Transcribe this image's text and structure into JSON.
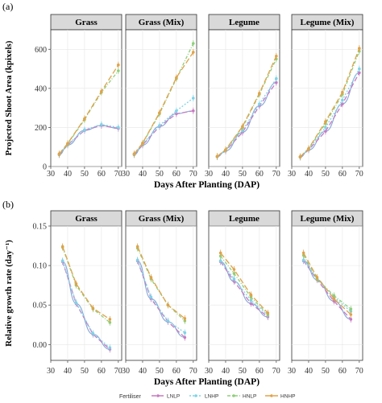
{
  "figure": {
    "panel_a_label": "(a)",
    "panel_b_label": "(b)"
  },
  "chart_data": [
    {
      "type": "line",
      "panel": "(a)",
      "facets": [
        "Grass",
        "Grass (Mix)",
        "Legume",
        "Legume (Mix)"
      ],
      "xlabel": "Days After Planting (DAP)",
      "ylabel": "Projected Shoot Area  (kpixels)",
      "xlim": [
        30,
        72
      ],
      "ylim": [
        0,
        700
      ],
      "xticks": [
        30,
        40,
        50,
        60,
        70
      ],
      "yticks": [
        0,
        200,
        400,
        600
      ],
      "grid": true,
      "x": [
        35,
        40,
        50,
        60,
        70
      ],
      "series_by_facet": {
        "Grass": [
          {
            "name": "LNLP",
            "values": [
              60,
              110,
              185,
              210,
              195
            ]
          },
          {
            "name": "LNHP",
            "values": [
              62,
              112,
              188,
              215,
              200
            ]
          },
          {
            "name": "HNLP",
            "values": [
              63,
              115,
              240,
              380,
              490
            ]
          },
          {
            "name": "HNHP",
            "values": [
              65,
              118,
              245,
              385,
              520
            ]
          }
        ],
        "Grass (Mix)": [
          {
            "name": "LNLP",
            "values": [
              60,
              110,
              205,
              270,
              285
            ]
          },
          {
            "name": "LNHP",
            "values": [
              62,
              115,
              210,
              285,
              350
            ]
          },
          {
            "name": "HNLP",
            "values": [
              63,
              118,
              270,
              450,
              630
            ]
          },
          {
            "name": "HNHP",
            "values": [
              65,
              120,
              275,
              455,
              585
            ]
          }
        ],
        "Legume": [
          {
            "name": "LNLP",
            "values": [
              50,
              80,
              175,
              310,
              430
            ]
          },
          {
            "name": "LNHP",
            "values": [
              50,
              82,
              185,
              320,
              450
            ]
          },
          {
            "name": "HNLP",
            "values": [
              52,
              85,
              200,
              370,
              550
            ]
          },
          {
            "name": "HNHP",
            "values": [
              52,
              86,
              205,
              375,
              565
            ]
          }
        ],
        "Legume (Mix)": [
          {
            "name": "LNLP",
            "values": [
              48,
              85,
              180,
              320,
              480
            ]
          },
          {
            "name": "LNHP",
            "values": [
              48,
              88,
              200,
              340,
              500
            ]
          },
          {
            "name": "HNLP",
            "values": [
              50,
              90,
              220,
              370,
              590
            ]
          },
          {
            "name": "HNHP",
            "values": [
              50,
              92,
              230,
              380,
              605
            ]
          }
        ]
      }
    },
    {
      "type": "line",
      "panel": "(b)",
      "facets": [
        "Grass",
        "Grass (Mix)",
        "Legume",
        "Legume (Mix)"
      ],
      "xlabel": "Days After Planting (DAP)",
      "ylabel": "Relative growth rate  (day⁻¹)",
      "xlim": [
        30,
        72
      ],
      "ylim": [
        -0.02,
        0.15
      ],
      "xticks": [
        30,
        40,
        50,
        60,
        70
      ],
      "yticks": [
        0.0,
        0.05,
        0.1,
        0.15
      ],
      "ytick_labels": [
        "0.00",
        "0.05",
        "0.10",
        "0.15"
      ],
      "grid": true,
      "x": [
        37,
        45,
        55,
        65
      ],
      "series_by_facet": {
        "Grass": [
          {
            "name": "LNLP",
            "values": [
              0.105,
              0.052,
              0.013,
              -0.006
            ]
          },
          {
            "name": "LNHP",
            "values": [
              0.106,
              0.053,
              0.014,
              -0.004
            ]
          },
          {
            "name": "HNLP",
            "values": [
              0.123,
              0.075,
              0.045,
              0.028
            ]
          },
          {
            "name": "HNHP",
            "values": [
              0.124,
              0.077,
              0.046,
              0.032
            ]
          }
        ],
        "Grass (Mix)": [
          {
            "name": "LNLP",
            "values": [
              0.106,
              0.058,
              0.029,
              0.009
            ]
          },
          {
            "name": "LNHP",
            "values": [
              0.107,
              0.06,
              0.03,
              0.015
            ]
          },
          {
            "name": "HNLP",
            "values": [
              0.122,
              0.083,
              0.05,
              0.03
            ]
          },
          {
            "name": "HNHP",
            "values": [
              0.124,
              0.085,
              0.05,
              0.033
            ]
          }
        ],
        "Legume": [
          {
            "name": "LNLP",
            "values": [
              0.105,
              0.08,
              0.052,
              0.035
            ]
          },
          {
            "name": "LNHP",
            "values": [
              0.106,
              0.083,
              0.056,
              0.037
            ]
          },
          {
            "name": "HNLP",
            "values": [
              0.112,
              0.09,
              0.06,
              0.038
            ]
          },
          {
            "name": "HNHP",
            "values": [
              0.116,
              0.095,
              0.063,
              0.04
            ]
          }
        ],
        "Legume (Mix)": [
          {
            "name": "LNLP",
            "values": [
              0.106,
              0.082,
              0.055,
              0.032
            ]
          },
          {
            "name": "LNHP",
            "values": [
              0.107,
              0.083,
              0.06,
              0.042
            ]
          },
          {
            "name": "HNLP",
            "values": [
              0.113,
              0.083,
              0.062,
              0.045
            ]
          },
          {
            "name": "HNHP",
            "values": [
              0.116,
              0.085,
              0.058,
              0.038
            ]
          }
        ]
      }
    }
  ],
  "legend": {
    "title": "Fertiliser",
    "placement": "bottom",
    "items": [
      {
        "name": "LNLP",
        "color": "#c779c2",
        "dash": "6,3"
      },
      {
        "name": "LNHP",
        "color": "#7fd3e6",
        "dash": "2,2"
      },
      {
        "name": "HNLP",
        "color": "#8ecf7a",
        "dash": "4,2,1,2"
      },
      {
        "name": "HNHP",
        "color": "#e0a24a",
        "dash": "7,3"
      }
    ]
  },
  "fit_line_color": "#6f96cf",
  "strip_fill": "#d9d9d9"
}
